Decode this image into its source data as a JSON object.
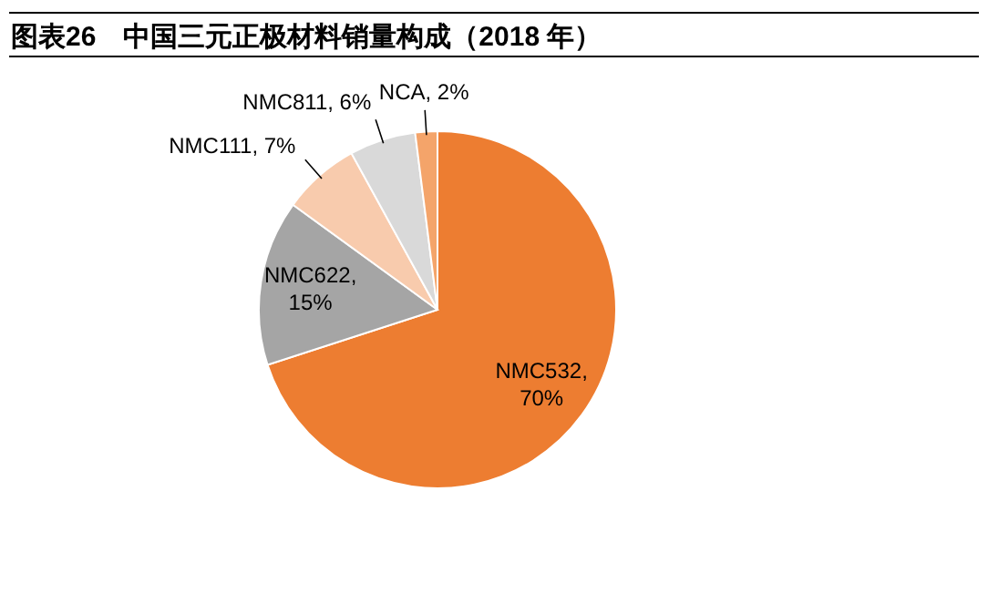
{
  "chart_data": {
    "type": "pie",
    "title": "图表26　中国三元正极材料销量构成（2018 年）",
    "categories": [
      "NMC532",
      "NMC622",
      "NMC111",
      "NMC811",
      "NCA"
    ],
    "values": [
      70,
      15,
      7,
      6,
      2
    ],
    "colors": [
      "#ed7d31",
      "#a5a5a5",
      "#f8cbad",
      "#d9d9d9",
      "#f4a46a"
    ],
    "value_labels": [
      ", 70%",
      ", 15%",
      ", 7%",
      ", 6%",
      ", 2%"
    ]
  }
}
